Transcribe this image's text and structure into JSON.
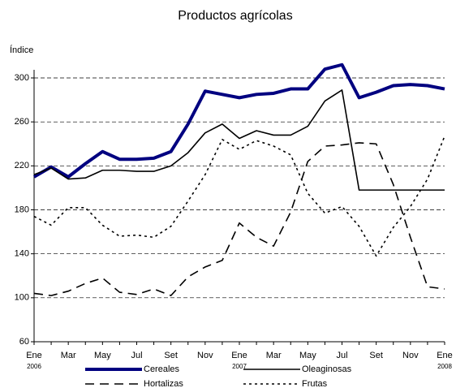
{
  "chart_data": {
    "type": "line",
    "title": "Productos agrícolas",
    "y_label": "Índice",
    "categories": [
      "Ene",
      null,
      "Mar",
      null,
      "May",
      null,
      "Jul",
      null,
      "Set",
      null,
      "Nov",
      null,
      "Ene",
      null,
      "Mar",
      null,
      "May",
      null,
      "Jul",
      null,
      "Set",
      null,
      "Nov",
      null,
      "Ene"
    ],
    "years": [
      "2006",
      null,
      null,
      null,
      null,
      null,
      null,
      null,
      null,
      null,
      null,
      null,
      "2007",
      null,
      null,
      null,
      null,
      null,
      null,
      null,
      null,
      null,
      null,
      null,
      "2008"
    ],
    "ylim": [
      60,
      300
    ],
    "yticks": [
      60,
      100,
      140,
      180,
      220,
      260,
      300
    ],
    "grid": true,
    "series": [
      {
        "name": "Cereales",
        "color": "#000080",
        "width": 4,
        "style": "solid",
        "values": [
          210,
          219,
          210,
          222,
          233,
          226,
          226,
          227,
          233,
          258,
          288,
          285,
          282,
          285,
          286,
          290,
          290,
          308,
          312,
          282,
          287,
          293,
          294,
          293,
          290
        ]
      },
      {
        "name": "Oleaginosas",
        "color": "#000000",
        "width": 1.6,
        "style": "solid",
        "values": [
          212,
          218,
          208,
          209,
          216,
          216,
          215,
          215,
          220,
          232,
          250,
          258,
          245,
          252,
          248,
          248,
          256,
          279,
          289,
          198,
          198,
          198,
          198,
          198,
          198
        ]
      },
      {
        "name": "Hortalizas",
        "color": "#000000",
        "width": 1.6,
        "style": "dashed",
        "values": [
          104,
          102,
          106,
          113,
          118,
          105,
          103,
          108,
          102,
          119,
          128,
          134,
          168,
          155,
          147,
          178,
          224,
          238,
          239,
          241,
          240,
          203,
          155,
          110,
          108
        ]
      },
      {
        "name": "Frutas",
        "color": "#000000",
        "width": 1.6,
        "style": "dotted",
        "values": [
          174,
          166,
          182,
          182,
          166,
          156,
          157,
          155,
          165,
          188,
          212,
          244,
          235,
          243,
          238,
          230,
          195,
          177,
          183,
          165,
          138,
          164,
          183,
          208,
          247
        ]
      }
    ]
  }
}
